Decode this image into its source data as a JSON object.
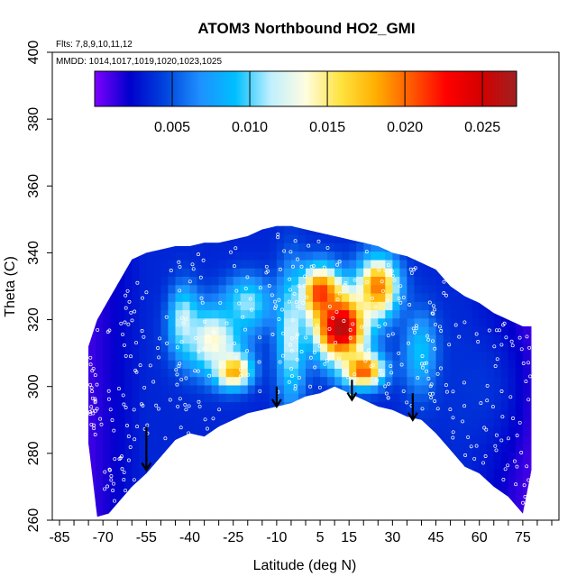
{
  "chart_data": {
    "type": "heatmap",
    "title": "ATOM3 Northbound HO2_GMI",
    "subtitle_lines": [
      "Flts: 7,8,9,10,11,12",
      "MMDD: 1014,1017,1019,1020,1023,1025"
    ],
    "xlabel": "Latitude (deg N)",
    "ylabel": "Theta (C)",
    "xlim": [
      -85,
      85
    ],
    "ylim": [
      260,
      400
    ],
    "x_ticks": [
      -85,
      -70,
      -55,
      -40,
      -25,
      -10,
      5,
      15,
      30,
      45,
      60,
      75
    ],
    "y_ticks": [
      260,
      280,
      300,
      320,
      340,
      360,
      380,
      400
    ],
    "colorbar": {
      "range": [
        0,
        0.0272
      ],
      "ticks": [
        "0.005",
        "0.010",
        "0.015",
        "0.020",
        "0.025"
      ],
      "tick_values": [
        0.005,
        0.01,
        0.015,
        0.02,
        0.025
      ],
      "colors": [
        "#7f00ff",
        "#0000cc",
        "#0044dd",
        "#1e90ff",
        "#00bfff",
        "#bfefff",
        "#fffde0",
        "#ffe33f",
        "#ffae00",
        "#ff5a00",
        "#ff0000",
        "#d40000",
        "#a02020"
      ]
    },
    "field_envelope": {
      "lat": [
        -75,
        -72,
        -68,
        -64,
        -60,
        -55,
        -50,
        -45,
        -40,
        -35,
        -30,
        -25,
        -20,
        -15,
        -10,
        -5,
        0,
        5,
        10,
        15,
        20,
        25,
        30,
        35,
        40,
        45,
        50,
        55,
        60,
        65,
        70,
        75,
        78
      ],
      "theta_low": [
        283,
        261,
        262,
        266,
        270,
        274,
        279,
        284,
        286,
        285,
        288,
        290,
        292,
        293,
        294,
        295,
        297,
        298,
        300,
        298,
        296,
        294,
        293,
        291,
        290,
        286,
        281,
        276,
        274,
        270,
        267,
        262,
        275
      ],
      "theta_high": [
        312,
        320,
        326,
        332,
        338,
        340,
        341,
        342,
        342,
        343,
        343,
        344,
        345,
        347,
        348,
        348,
        347,
        346,
        345,
        344,
        343,
        342,
        340,
        339,
        337,
        335,
        330,
        327,
        325,
        322,
        320,
        318,
        318
      ]
    },
    "value_centers": [
      {
        "lat": 12,
        "theta": 318,
        "value": 0.027,
        "spread_lat": 9,
        "spread_theta": 10
      },
      {
        "lat": 5,
        "theta": 328,
        "value": 0.022,
        "spread_lat": 7,
        "spread_theta": 8
      },
      {
        "lat": 25,
        "theta": 330,
        "value": 0.02,
        "spread_lat": 7,
        "spread_theta": 9
      },
      {
        "lat": 20,
        "theta": 305,
        "value": 0.021,
        "spread_lat": 7,
        "spread_theta": 5
      },
      {
        "lat": -25,
        "theta": 305,
        "value": 0.02,
        "spread_lat": 6,
        "spread_theta": 5
      },
      {
        "lat": -32,
        "theta": 314,
        "value": 0.014,
        "spread_lat": 10,
        "spread_theta": 10
      },
      {
        "lat": -20,
        "theta": 325,
        "value": 0.011,
        "spread_lat": 8,
        "spread_theta": 8
      },
      {
        "lat": -42,
        "theta": 320,
        "value": 0.012,
        "spread_lat": 5,
        "spread_theta": 10
      },
      {
        "lat": -5,
        "theta": 315,
        "value": 0.012,
        "spread_lat": 5,
        "spread_theta": 20
      },
      {
        "lat": 40,
        "theta": 310,
        "value": 0.01,
        "spread_lat": 6,
        "spread_theta": 12
      },
      {
        "lat": 60,
        "theta": 300,
        "value": 0.004,
        "spread_lat": 15,
        "spread_theta": 20
      }
    ],
    "arrows": [
      {
        "lat": -55,
        "theta_top": 288,
        "theta_bottom": 275
      },
      {
        "lat": -10,
        "theta_top": 300,
        "theta_bottom": 294
      },
      {
        "lat": 16,
        "theta_top": 302,
        "theta_bottom": 296
      },
      {
        "lat": 37,
        "theta_top": 298,
        "theta_bottom": 290
      }
    ]
  }
}
